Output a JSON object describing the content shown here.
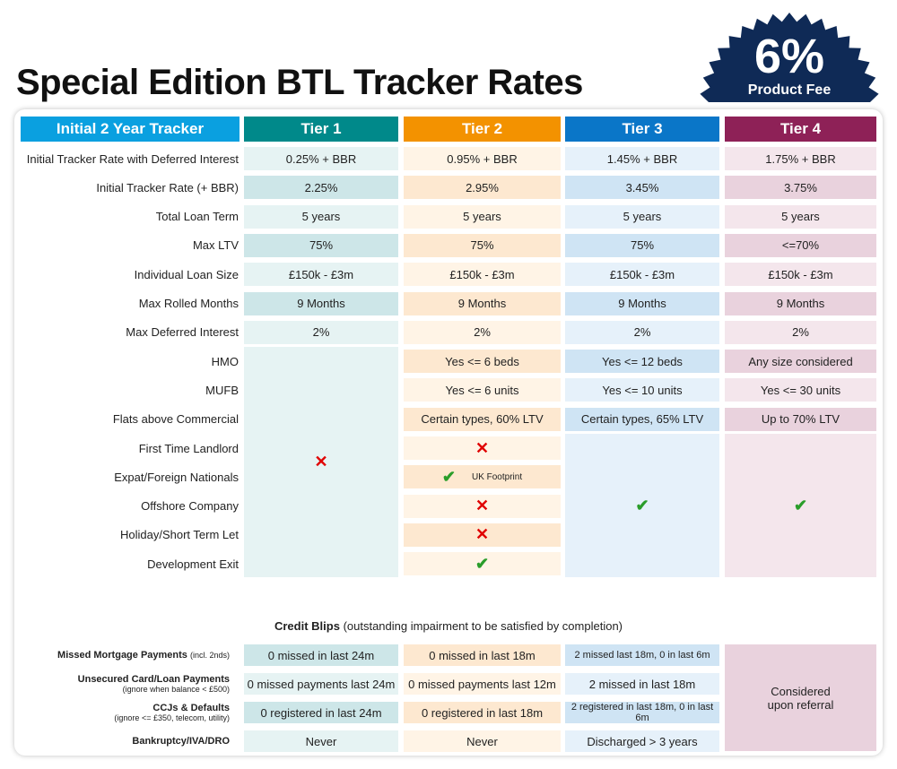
{
  "title": "Special Edition BTL Tracker Rates",
  "badge": {
    "value": "6%",
    "label": "Product Fee",
    "color": "#0f2a56"
  },
  "colors": {
    "label_header": "#0aa0e0",
    "tiers": [
      {
        "header": "#00898a",
        "light": "#e6f3f3",
        "dark": "#cde6e8"
      },
      {
        "header": "#f39200",
        "light": "#fff4e6",
        "dark": "#fde8d0"
      },
      {
        "header": "#0a76c8",
        "light": "#e6f1fa",
        "dark": "#cfe4f4"
      },
      {
        "header": "#8e2157",
        "light": "#f4e6ec",
        "dark": "#e9d2dd"
      }
    ]
  },
  "table": {
    "label_header": "Initial 2 Year Tracker",
    "tiers": [
      "Tier 1",
      "Tier 2",
      "Tier 3",
      "Tier 4"
    ],
    "rows": [
      {
        "label": "Initial Tracker Rate with Deferred Interest",
        "values": [
          "0.25% + BBR",
          "0.95% + BBR",
          "1.45% + BBR",
          "1.75% + BBR"
        ]
      },
      {
        "label": "Initial Tracker Rate (+ BBR)",
        "values": [
          "2.25%",
          "2.95%",
          "3.45%",
          "3.75%"
        ]
      },
      {
        "label": "Total Loan Term",
        "values": [
          "5 years",
          "5 years",
          "5 years",
          "5 years"
        ]
      },
      {
        "label": "Max LTV",
        "values": [
          "75%",
          "75%",
          "75%",
          "<=70%"
        ]
      },
      {
        "label": "Individual Loan Size",
        "values": [
          "£150k - £3m",
          "£150k - £3m",
          "£150k - £3m",
          "£150k - £3m"
        ]
      },
      {
        "label": "Max Rolled Months",
        "values": [
          "9 Months",
          "9 Months",
          "9 Months",
          "9 Months"
        ]
      },
      {
        "label": "Max Deferred Interest",
        "values": [
          "2%",
          "2%",
          "2%",
          "2%"
        ]
      },
      {
        "label": "HMO",
        "values": [
          null,
          "Yes <= 6 beds",
          "Yes <= 12 beds",
          "Any size considered"
        ]
      },
      {
        "label": "MUFB",
        "values": [
          null,
          "Yes <= 6 units",
          "Yes <= 10 units",
          "Yes <= 30 units"
        ]
      },
      {
        "label": "Flats above Commercial",
        "values": [
          null,
          "Certain types, 60% LTV",
          "Certain types, 65% LTV",
          "Up to 70% LTV"
        ]
      },
      {
        "label": "First Time Landlord",
        "values": [
          null,
          "cross",
          null,
          null
        ]
      },
      {
        "label": "Expat/Foreign Nationals",
        "values": [
          null,
          "check",
          null,
          null
        ],
        "note": "UK Footprint"
      },
      {
        "label": "Offshore Company",
        "values": [
          null,
          "cross",
          null,
          null
        ]
      },
      {
        "label": "Holiday/Short Term Let",
        "values": [
          null,
          "cross",
          null,
          null
        ]
      },
      {
        "label": "Development Exit",
        "values": [
          null,
          "check",
          null,
          null
        ]
      }
    ],
    "merged": [
      {
        "tier": 0,
        "from": 7,
        "to": 14,
        "icon": "cross"
      },
      {
        "tier": 2,
        "from": 10,
        "to": 14,
        "icon": "check"
      },
      {
        "tier": 3,
        "from": 10,
        "to": 14,
        "icon": "check"
      }
    ]
  },
  "credit": {
    "title_bold": "Credit Blips",
    "title_rest": " (outstanding impairment to be satisfied by completion)",
    "rows": [
      {
        "label": "Missed Mortgage Payments",
        "inline_note": "(incl. 2nds)",
        "values": [
          "0 missed in last 24m",
          "0 missed in last 18m",
          "2 missed last 18m, 0 in last 6m"
        ]
      },
      {
        "label": "Unsecured Card/Loan Payments",
        "note": "(ignore when balance < £500)",
        "values": [
          "0 missed payments last 24m",
          "0 missed payments last 12m",
          "2 missed in last 18m"
        ]
      },
      {
        "label": "CCJs & Defaults",
        "note": "(ignore <= £350, telecom, utility)",
        "values": [
          "0 registered in last 24m",
          "0 registered in last 18m",
          "2 registered in last 18m, 0 in last 6m"
        ]
      },
      {
        "label": "Bankruptcy/IVA/DRO",
        "values": [
          "Never",
          "Never",
          "Discharged > 3 years"
        ]
      }
    ],
    "tier4": "Considered upon referral"
  }
}
